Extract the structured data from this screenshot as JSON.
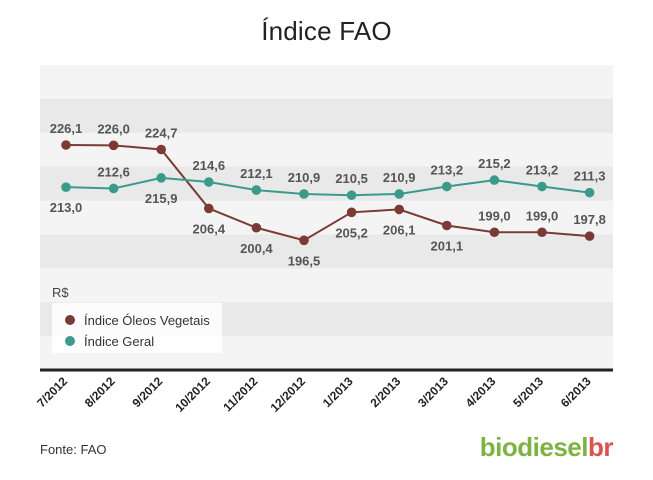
{
  "title": "Índice FAO",
  "source": "Fonte: FAO",
  "brand": {
    "main": "biodiesel",
    "accent": "br"
  },
  "colors": {
    "oleos": "#7b3a34",
    "geral": "#3a9a8c",
    "band_light": "#f4f4f4",
    "band_dark": "#e9e9e9",
    "axis": "#222222",
    "brand_green": "#7cb342",
    "brand_red": "#d9534f"
  },
  "chart_data": {
    "type": "line",
    "title": "Índice FAO",
    "ylabel": "R$",
    "categories": [
      "7/2012",
      "8/2012",
      "9/2012",
      "10/2012",
      "11/2012",
      "12/2012",
      "1/2013",
      "2/2013",
      "3/2013",
      "4/2013",
      "5/2013",
      "6/2013"
    ],
    "series": [
      {
        "name": "Índice Óleos Vegetais",
        "values": [
          226.1,
          226.0,
          224.7,
          206.4,
          200.4,
          196.5,
          205.2,
          206.1,
          201.1,
          199.0,
          199.0,
          197.8
        ],
        "labels": [
          "226,1",
          "226,0",
          "224,7",
          "206,4",
          "200,4",
          "196,5",
          "205,2",
          "206,1",
          "201,1",
          "199,0",
          "199,0",
          "197,8"
        ],
        "label_pos": [
          "above",
          "above",
          "above",
          "below",
          "below",
          "below",
          "below",
          "below",
          "below",
          "above",
          "above",
          "above"
        ]
      },
      {
        "name": "Índice Geral",
        "values": [
          213.0,
          212.6,
          215.9,
          214.6,
          212.1,
          210.9,
          210.5,
          210.9,
          213.2,
          215.2,
          213.2,
          211.3
        ],
        "labels": [
          "213,0",
          "212,6",
          "215,9",
          "214,6",
          "212,1",
          "210,9",
          "210,5",
          "210,9",
          "213,2",
          "215,2",
          "213,2",
          "211,3"
        ],
        "label_pos": [
          "below",
          "above",
          "below",
          "above",
          "above",
          "above",
          "above",
          "above",
          "above",
          "above",
          "above",
          "above"
        ]
      }
    ],
    "legend_position": "bottom-left",
    "grid": false
  }
}
